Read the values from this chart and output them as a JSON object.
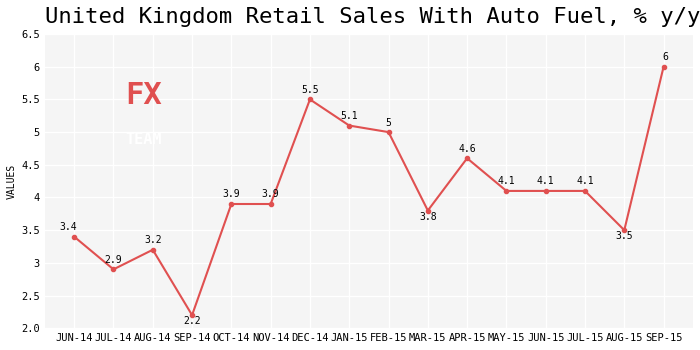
{
  "title": "United Kingdom Retail Sales With Auto Fuel, % y/y",
  "ylabel": "VALUES",
  "categories": [
    "JUN-14",
    "JUL-14",
    "AUG-14",
    "SEP-14",
    "OCT-14",
    "NOV-14",
    "DEC-14",
    "JAN-15",
    "FEB-15",
    "MAR-15",
    "APR-15",
    "MAY-15",
    "JUN-15",
    "JUL-15",
    "AUG-15",
    "SEP-15"
  ],
  "values": [
    3.4,
    2.9,
    3.2,
    2.2,
    3.9,
    3.9,
    5.5,
    5.1,
    5.0,
    3.8,
    4.6,
    4.1,
    4.1,
    4.1,
    3.5,
    6.0
  ],
  "line_color": "#e05050",
  "marker_color": "#e05050",
  "bg_color": "#ffffff",
  "plot_bg_color": "#f5f5f5",
  "grid_color": "#ffffff",
  "title_fontsize": 16,
  "label_fontsize": 7,
  "tick_fontsize": 7.5,
  "ylabel_fontsize": 7,
  "ylim": [
    2.0,
    6.5
  ],
  "yticks": [
    2.0,
    2.5,
    3.0,
    3.5,
    4.0,
    4.5,
    5.0,
    5.5,
    6.0,
    6.5
  ],
  "logo_box_color": "#666666",
  "logo_fx_color": "#e05050",
  "logo_team_color": "#ffffff"
}
